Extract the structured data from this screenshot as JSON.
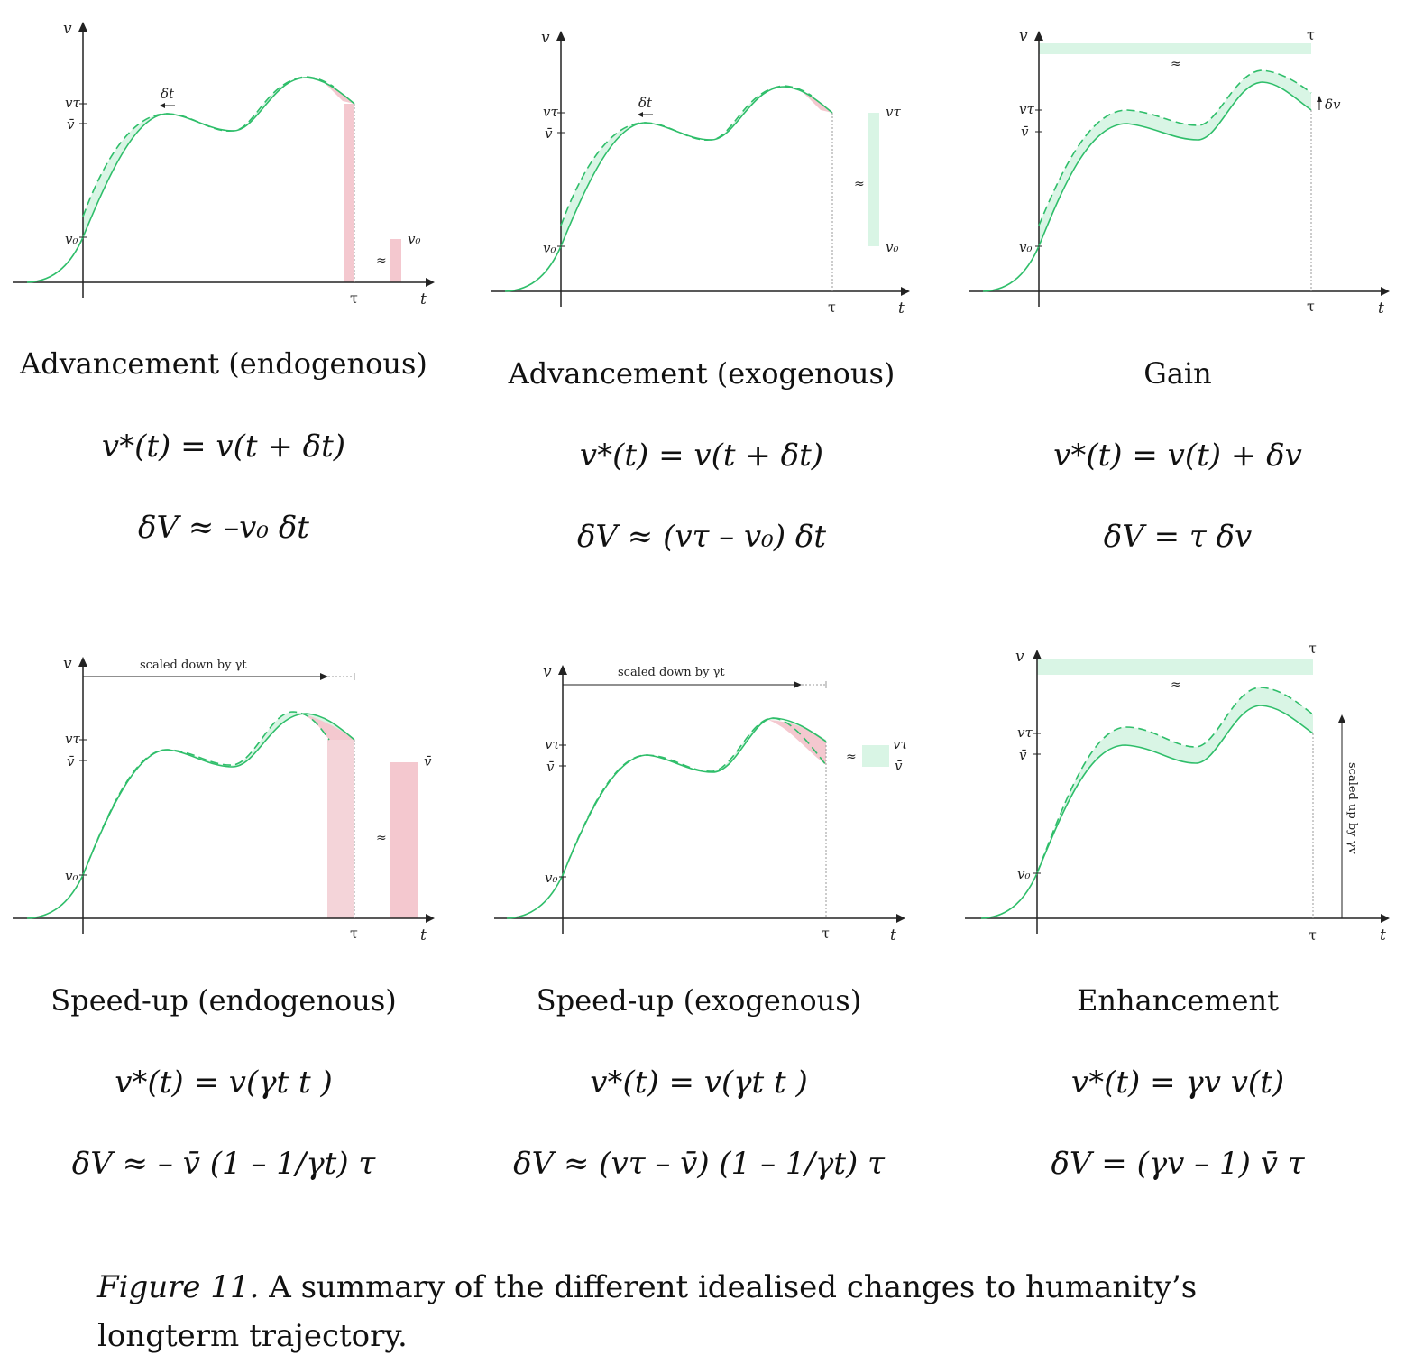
{
  "colors": {
    "green": "#2fbe6a",
    "light_green": "#d9f5e5",
    "pink": "#f4c8cf",
    "axis": "#222222"
  },
  "panels": [
    {
      "id": "advancement-endogenous",
      "title": "Advancement (endogenous)",
      "eq1": "v*(t) = v(t + δt)",
      "eq2": "δV ≈ –v₀ δt",
      "labels": {
        "v": "v",
        "t": "t",
        "tau": "τ",
        "vtau": "vτ",
        "vbar": "v̄",
        "v0": "v₀",
        "dt": "δt",
        "approx": "≈",
        "bar_v0": "v₀"
      }
    },
    {
      "id": "advancement-exogenous",
      "title": "Advancement (exogenous)",
      "eq1": "v*(t) = v(t + δt)",
      "eq2": "δV ≈ (vτ – v₀) δt",
      "labels": {
        "v": "v",
        "t": "t",
        "tau": "τ",
        "vtau": "vτ",
        "vbar": "v̄",
        "v0": "v₀",
        "dt": "δt",
        "approx": "≈",
        "bar_vtau": "vτ",
        "bar_v0": "v₀"
      }
    },
    {
      "id": "gain",
      "title": "Gain",
      "eq1": "v*(t) = v(t) + δv",
      "eq2": "δV = τ δv",
      "labels": {
        "v": "v",
        "t": "t",
        "tau": "τ",
        "tau_top": "τ",
        "vtau": "vτ",
        "vbar": "v̄",
        "v0": "v₀",
        "dv": "δv",
        "approx": "≈"
      }
    },
    {
      "id": "speed-up-endogenous",
      "title": "Speed-up (endogenous)",
      "eq1": "v*(t) = v(γt t )",
      "eq2": "δV ≈ – v̄ (1 – 1/γt) τ",
      "labels": {
        "v": "v",
        "t": "t",
        "tau": "τ",
        "vtau": "vτ",
        "vbar": "v̄",
        "v0": "v₀",
        "scaled": "scaled down by γt",
        "approx": "≈",
        "bar_vbar": "v̄"
      }
    },
    {
      "id": "speed-up-exogenous",
      "title": "Speed-up (exogenous)",
      "eq1": "v*(t) = v(γt t )",
      "eq2": "δV ≈ (vτ – v̄) (1 – 1/γt) τ",
      "labels": {
        "v": "v",
        "t": "t",
        "tau": "τ",
        "vtau": "vτ",
        "vbar": "v̄",
        "v0": "v₀",
        "scaled": "scaled down by γt",
        "approx": "≈",
        "bar_vtau": "vτ",
        "bar_vbar": "v̄"
      }
    },
    {
      "id": "enhancement",
      "title": "Enhancement",
      "eq1": "v*(t) = γv v(t)",
      "eq2": "δV = (γv – 1) v̄ τ",
      "labels": {
        "v": "v",
        "t": "t",
        "tau": "τ",
        "tau_top": "τ",
        "vtau": "vτ",
        "vbar": "v̄",
        "v0": "v₀",
        "scaled": "scaled up by γv",
        "approx": "≈"
      }
    }
  ],
  "caption": {
    "label": "Figure 11.",
    "text": "A summary of the different idealised changes to humanity’s longterm trajectory."
  }
}
